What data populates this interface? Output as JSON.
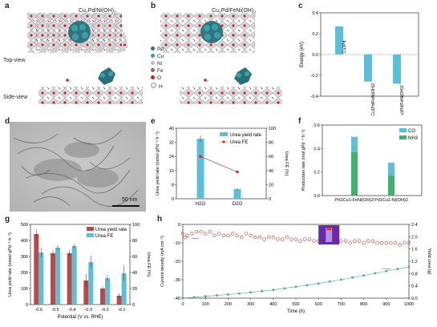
{
  "panels": {
    "a": {
      "label": "a",
      "title": "Cu1Pd/Ni(OH)2",
      "top_view": "Top-view",
      "side_view": "Side-view"
    },
    "b": {
      "label": "b",
      "title": "Cu1Pd/FeNi(OH)2",
      "legend": [
        "Pd",
        "Cu",
        "Ni",
        "Fe",
        "O",
        "H"
      ]
    },
    "c": {
      "label": "c",
      "ylabel": "Energy (eV)"
    },
    "d": {
      "label": "d",
      "scalebar": "50 nm"
    },
    "e": {
      "label": "e"
    },
    "f": {
      "label": "f"
    },
    "g": {
      "label": "g"
    },
    "h": {
      "label": "h"
    }
  },
  "colors": {
    "pd": "#2a6f7a",
    "cu": "#3aa0a8",
    "ni": "#b8bcc2",
    "fe": "#c0c4cc",
    "o": "#c62828",
    "h": "#f1f1f1",
    "bar_blue": "#5bbfd9",
    "bar_green": "#3db36a",
    "red": "#c0392b"
  },
  "chart_data": [
    {
      "panel": "c",
      "type": "bar",
      "ylabel": "Energy (eV)",
      "ylim": [
        -0.4,
        0.4
      ],
      "yticks": [
        -0.4,
        -0.2,
        0.0,
        0.2,
        0.4
      ],
      "categories": [
        "Cu1Pd",
        "Cu1Pd/FeNi(OH)2",
        "Cu1Pd/FeNi(OH)2"
      ],
      "values": [
        0.27,
        -0.26,
        -0.28
      ]
    },
    {
      "panel": "e",
      "type": "bar",
      "ylabel": "Urea yield rate (mmol gPd⁻¹ h⁻¹)",
      "ylabel2": "Urea FE (%)",
      "categories": [
        "H2O",
        "D2O"
      ],
      "ylim": [
        0,
        40
      ],
      "yticks": [
        0,
        8,
        16,
        24,
        32,
        40
      ],
      "y2lim": [
        0,
        100
      ],
      "y2ticks": [
        0,
        20,
        40,
        60,
        80,
        100
      ],
      "series": [
        {
          "name": "Urea yield rate",
          "values": [
            34,
            5.5
          ],
          "errors": [
            2,
            0.5
          ]
        },
        {
          "name": "Urea FE",
          "values": [
            60,
            38
          ]
        }
      ]
    },
    {
      "panel": "f",
      "type": "bar",
      "ylabel": "Production rate (mol gPd⁻¹ h⁻¹)",
      "categories": [
        "Pd1Cu1-FeNi(OH)2",
        "Pd1Cu1-Ni(OH)2"
      ],
      "ylim": [
        0.0,
        0.6
      ],
      "yticks": [
        0.0,
        0.2,
        0.4,
        0.6
      ],
      "series": [
        {
          "name": "CO",
          "values": [
            0.13,
            0.11
          ]
        },
        {
          "name": "NH3",
          "values": [
            0.37,
            0.17
          ]
        }
      ]
    },
    {
      "panel": "g",
      "type": "bar",
      "xlabel": "Potential (V vs. RHE)",
      "ylabel": "Urea yield rate (mmol gPd⁻¹ h⁻¹)",
      "ylabel2": "Urea FE (%)",
      "categories": [
        "-0.6",
        "-0.5",
        "-0.4",
        "-0.3",
        "-0.2",
        "-0.1"
      ],
      "ylim": [
        0,
        500
      ],
      "yticks": [
        0,
        100,
        200,
        300,
        400,
        500
      ],
      "y2lim": [
        0,
        100
      ],
      "y2ticks": [
        0,
        20,
        40,
        60,
        80,
        100
      ],
      "series": [
        {
          "name": "Urea yield rate",
          "values": [
            440,
            320,
            320,
            150,
            100,
            55
          ],
          "errors": [
            30,
            20,
            20,
            40,
            15,
            15
          ]
        },
        {
          "name": "Urea FE",
          "values": [
            65,
            71,
            73,
            53,
            33,
            39
          ],
          "errors": [
            6,
            3,
            3,
            8,
            4,
            10
          ]
        }
      ]
    },
    {
      "panel": "h",
      "type": "scatter",
      "xlabel": "Time (h)",
      "ylabel": "Current density (mA cm⁻²)",
      "ylabel2": "Yield urea (g)",
      "xlim": [
        0,
        1000
      ],
      "xticks": [
        0,
        100,
        200,
        300,
        400,
        500,
        600,
        700,
        800,
        900,
        1000
      ],
      "ylim": [
        -40,
        0
      ],
      "yticks": [
        -40,
        -30,
        -20,
        -10,
        0
      ],
      "y2lim": [
        0,
        2.4
      ],
      "y2ticks": [
        0,
        0.4,
        0.8,
        1.2,
        1.6,
        2.0,
        2.4
      ],
      "series": [
        {
          "name": "Current density",
          "x": [
            0,
            10,
            20,
            40,
            60,
            80,
            100,
            120,
            140,
            160,
            180,
            200,
            220,
            240,
            260,
            280,
            300,
            320,
            340,
            360,
            380,
            400,
            420,
            440,
            460,
            480,
            500,
            520,
            540,
            560,
            580,
            600,
            620,
            640,
            660,
            680,
            700,
            720,
            740,
            760,
            780,
            800,
            820,
            840,
            860,
            880,
            900,
            920,
            940,
            960,
            980,
            1000
          ],
          "y": [
            -5,
            -7,
            -6,
            -5,
            -4,
            -4,
            -5,
            -4,
            -6,
            -5,
            -6,
            -6,
            -5,
            -6,
            -7,
            -5,
            -6,
            -7,
            -7,
            -8,
            -7,
            -7,
            -8,
            -8,
            -7,
            -8,
            -8,
            -9,
            -8,
            -8,
            -9,
            -9,
            -8,
            -9,
            -9,
            -8,
            -9,
            -9,
            -10,
            -9,
            -9,
            -10,
            -9,
            -9,
            -10,
            -10,
            -10,
            -10,
            -10,
            -11,
            -10,
            -10
          ]
        },
        {
          "name": "Yield urea",
          "x": [
            0,
            50,
            100,
            150,
            200,
            250,
            300,
            350,
            400,
            450,
            500,
            550,
            600,
            650,
            700,
            750,
            800,
            850,
            900,
            950,
            1000
          ],
          "y": [
            0,
            0.03,
            0.06,
            0.09,
            0.12,
            0.15,
            0.19,
            0.23,
            0.27,
            0.32,
            0.37,
            0.42,
            0.48,
            0.54,
            0.6,
            0.67,
            0.74,
            0.81,
            0.88,
            0.95,
            1.02
          ]
        }
      ]
    }
  ]
}
